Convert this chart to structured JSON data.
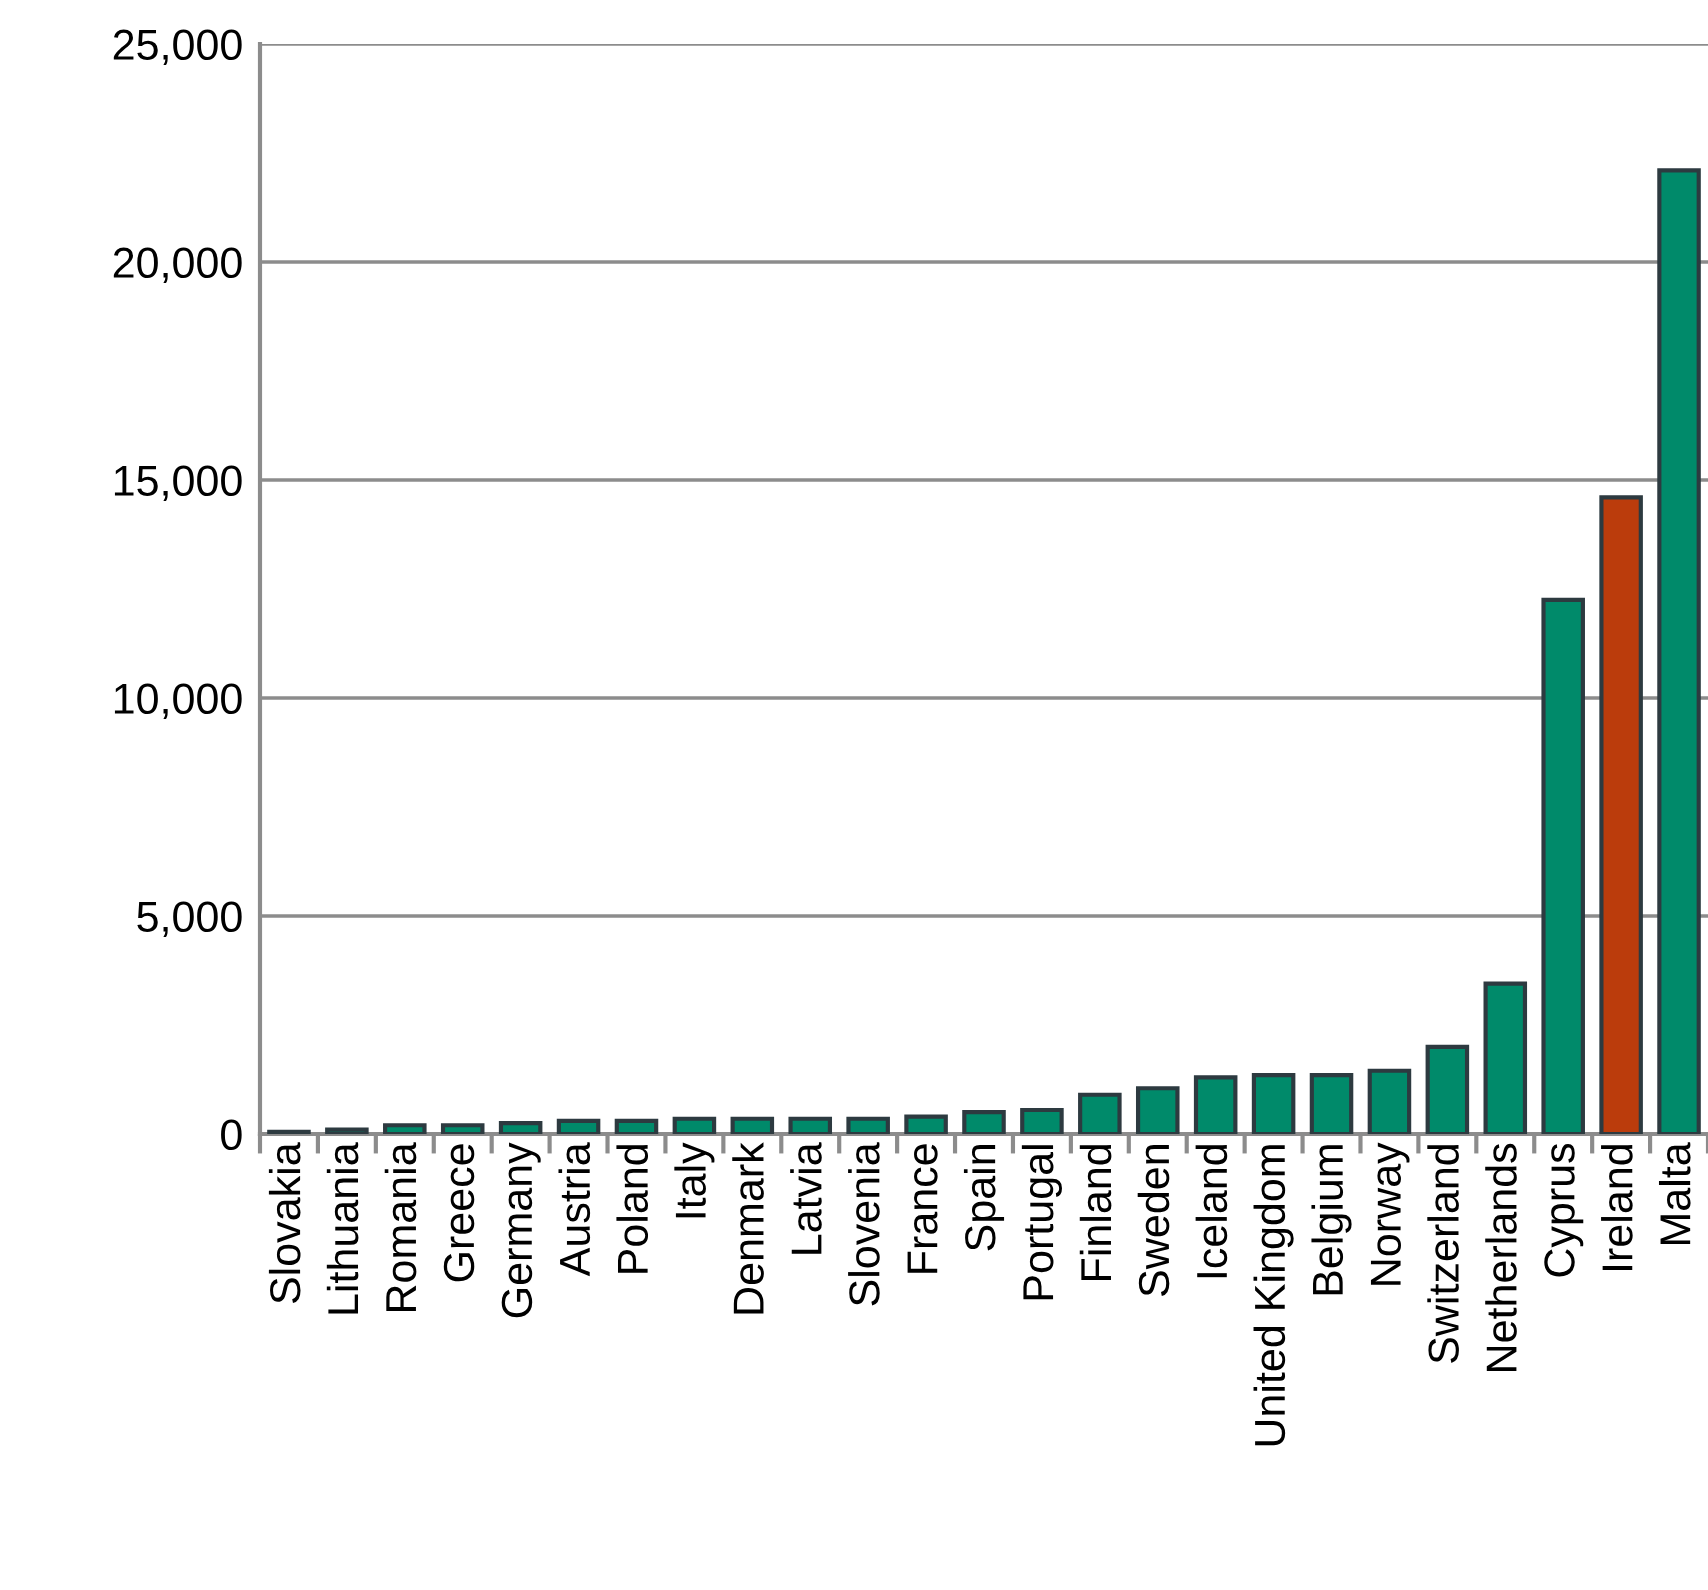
{
  "chart_data": {
    "type": "bar",
    "categories": [
      "Slovakia",
      "Lithuania",
      "Romania",
      "Greece",
      "Germany",
      "Austria",
      "Poland",
      "Italy",
      "Denmark",
      "Latvia",
      "Slovenia",
      "France",
      "Spain",
      "Portugal",
      "Finland",
      "Sweden",
      "Iceland",
      "United Kingdom",
      "Belgium",
      "Norway",
      "Switzerland",
      "Netherlands",
      "Cyprus",
      "Ireland",
      "Malta"
    ],
    "values": [
      50,
      100,
      200,
      200,
      250,
      300,
      300,
      350,
      350,
      350,
      350,
      400,
      500,
      550,
      900,
      1050,
      1300,
      1350,
      1350,
      1450,
      2000,
      3450,
      12250,
      14600,
      22100
    ],
    "colors": [
      "#008a6a",
      "#008a6a",
      "#008a6a",
      "#008a6a",
      "#008a6a",
      "#008a6a",
      "#008a6a",
      "#008a6a",
      "#008a6a",
      "#008a6a",
      "#008a6a",
      "#008a6a",
      "#008a6a",
      "#008a6a",
      "#008a6a",
      "#008a6a",
      "#008a6a",
      "#008a6a",
      "#008a6a",
      "#008a6a",
      "#008a6a",
      "#008a6a",
      "#008a6a",
      "#bb3c0c",
      "#008a6a"
    ],
    "ylim": [
      0,
      25000
    ],
    "yticks": [
      {
        "value": 0,
        "label": "0"
      },
      {
        "value": 5000,
        "label": "5,000"
      },
      {
        "value": 10000,
        "label": "10,000"
      },
      {
        "value": 15000,
        "label": "15,000"
      },
      {
        "value": 20000,
        "label": "20,000"
      },
      {
        "value": 25000,
        "label": "25,000"
      }
    ],
    "grid": "y",
    "legend": false
  }
}
